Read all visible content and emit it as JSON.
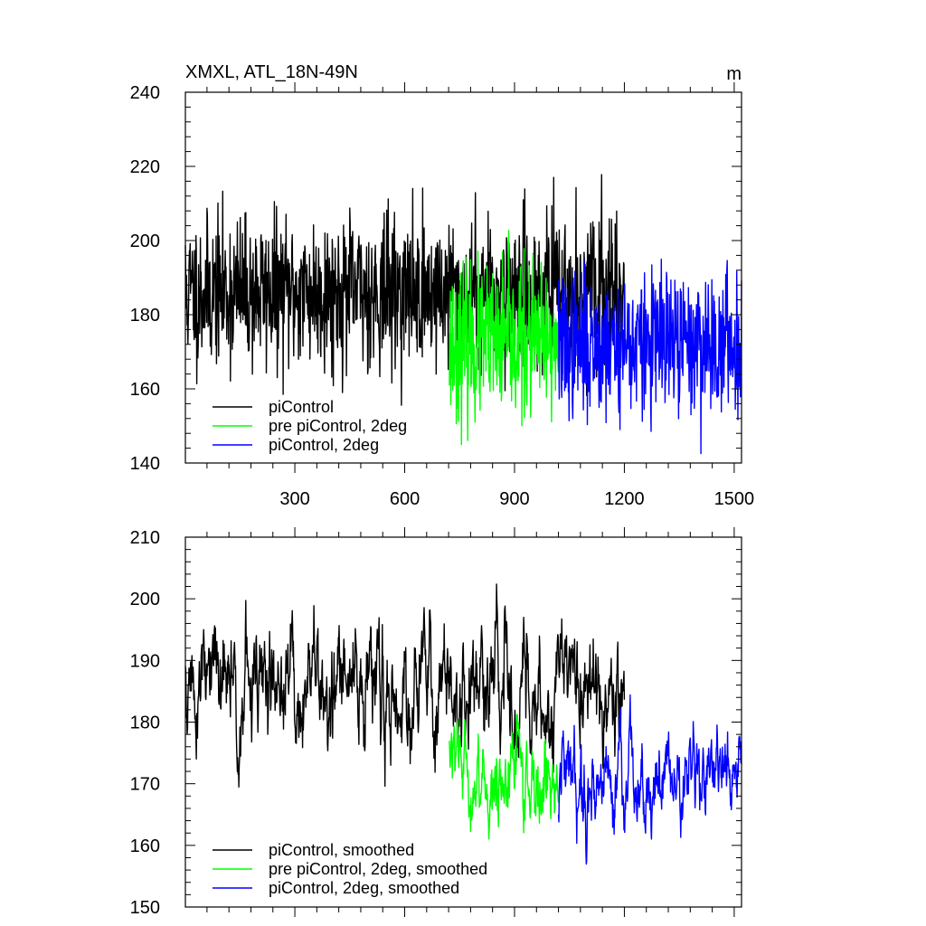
{
  "chart_data": [
    {
      "type": "line",
      "title": "XMXL, ATL_18N-49N",
      "units": "m",
      "xlim": [
        1,
        1520
      ],
      "ylim": [
        140,
        240
      ],
      "xticks": [
        300,
        600,
        900,
        1200,
        1500
      ],
      "xtick_labels": [
        "300",
        "600",
        "900",
        "1200",
        "1500"
      ],
      "yticks": [
        140,
        160,
        180,
        200,
        220,
        240
      ],
      "ytick_labels": [
        "140",
        "160",
        "180",
        "200",
        "220",
        "240"
      ],
      "legend_position": "bottom-left",
      "series": [
        {
          "name": "piControl",
          "color": "#000000",
          "x_range": [
            1,
            1200
          ],
          "mean": 186,
          "std": 10,
          "lag1_corr": 0.05,
          "seed": 11,
          "note": "noisy annual values; min about 151, max about 223"
        },
        {
          "name": "pre piControl, 2deg",
          "color": "#00ff00",
          "x_range": [
            722,
            1020
          ],
          "mean": 172,
          "std": 10,
          "lag1_corr": 0.05,
          "seed": 23,
          "note": "noisy annual values; min about 146, max about 197"
        },
        {
          "name": "piControl, 2deg",
          "color": "#0000ff",
          "x_range": [
            1020,
            1520
          ],
          "mean": 172,
          "std": 9.5,
          "lag1_corr": 0.05,
          "seed": 37,
          "note": "noisy annual values; min about 145, max about 207"
        }
      ]
    },
    {
      "type": "line",
      "title": "",
      "xlim": [
        1,
        1520
      ],
      "ylim": [
        150,
        210
      ],
      "xticks": [
        300,
        600,
        900,
        1200,
        1500
      ],
      "yticks": [
        150,
        160,
        170,
        180,
        190,
        200,
        210
      ],
      "ytick_labels": [
        "150",
        "160",
        "170",
        "180",
        "190",
        "200",
        "210"
      ],
      "legend_position": "bottom-left",
      "series": [
        {
          "name": "piControl, smoothed",
          "color": "#000000",
          "x_range": [
            1,
            1200
          ],
          "mean": 185.5,
          "std": 5.5,
          "lag1_corr": 0.8,
          "seed": 51,
          "note": "smoothed; min about 169, max about 200"
        },
        {
          "name": "pre piControl, 2deg, smoothed",
          "color": "#00ff00",
          "x_range": [
            722,
            1020
          ],
          "mean": 171,
          "std": 4,
          "lag1_corr": 0.8,
          "seed": 63,
          "note": "smoothed; min about 157, max about 183"
        },
        {
          "name": "piControl, 2deg, smoothed",
          "color": "#0000ff",
          "x_range": [
            1020,
            1520
          ],
          "mean": 171,
          "std": 4.2,
          "lag1_corr": 0.8,
          "seed": 79,
          "note": "smoothed; min about 159, max about 187"
        }
      ]
    }
  ]
}
